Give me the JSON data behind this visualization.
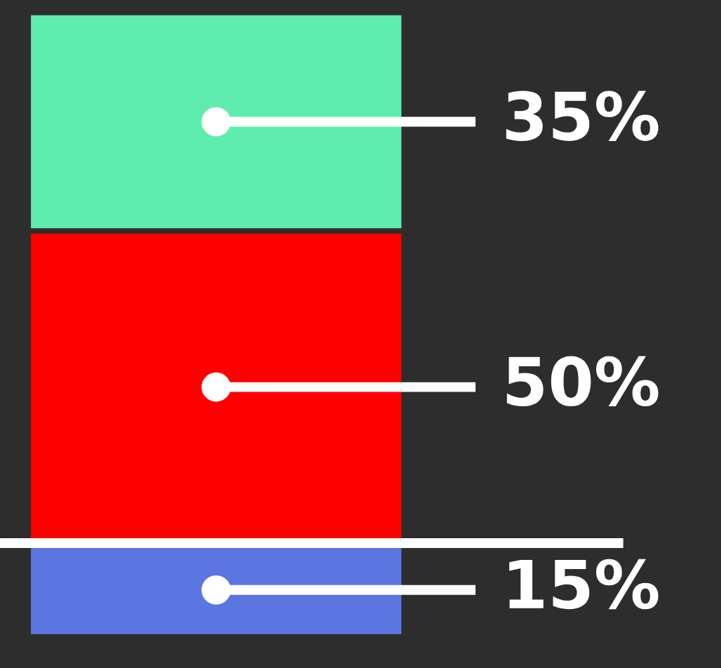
{
  "chart_data": {
    "type": "bar",
    "stacked": true,
    "categories": [
      null
    ],
    "series": [
      {
        "color": "#5b76e0",
        "values": [
          15
        ],
        "value_labels": [
          "15%"
        ]
      },
      {
        "color": "#ff0000",
        "values": [
          50
        ],
        "value_labels": [
          "50%"
        ]
      },
      {
        "color": "#5eecaf",
        "values": [
          35
        ],
        "value_labels": [
          "35%"
        ]
      }
    ],
    "ref_lines": [
      {
        "axis": "y",
        "value": 15,
        "color": "#ffffff"
      }
    ],
    "legend": false
  }
}
